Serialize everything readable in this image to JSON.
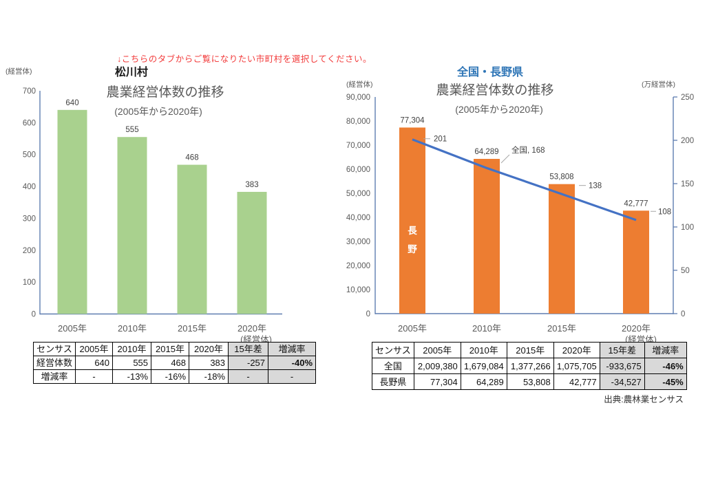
{
  "page": {
    "instruction": "↓こちらのタブからご覧になりたい市町村を選択してください。",
    "source_note": "出典:農林業センサス"
  },
  "colors": {
    "green_bar": "#A9D18E",
    "orange_bar": "#ED7D31",
    "line_blue": "#4472C4",
    "axis": "#5E7DB0",
    "text_gray": "#595959",
    "value_text": "#404040",
    "heading_blue": "#2E75B6",
    "leader_gray": "#A6A6A6",
    "table_shade": "#D9D9D9",
    "negative_red": "#FF3333"
  },
  "chart_data": [
    {
      "type": "bar",
      "heading": "松川村",
      "title": "農業経営体数の推移",
      "subtitle": "(2005年から2020年)",
      "y_axis_unit": "(経営体)",
      "x_axis_end_note": "(経営体)",
      "categories": [
        "2005年",
        "2010年",
        "2015年",
        "2020年"
      ],
      "values": [
        640,
        555,
        468,
        383
      ],
      "value_labels": [
        "640",
        "555",
        "468",
        "383"
      ],
      "ylim": [
        0,
        700
      ],
      "ytick_step": 100,
      "grid": false,
      "legend": "none"
    },
    {
      "type": "bar+line",
      "heading": "全国・長野県",
      "title": "農業経営体数の推移",
      "subtitle": "(2005年から2020年)",
      "x_axis_end_note": "(経営体)",
      "categories": [
        "2005年",
        "2010年",
        "2015年",
        "2020年"
      ],
      "left_axis": {
        "unit": "(経営体)",
        "lim": [
          0,
          90000
        ],
        "step": 10000
      },
      "right_axis": {
        "unit": "(万経営体)",
        "lim": [
          0,
          250
        ],
        "step": 50
      },
      "series": [
        {
          "name": "長野",
          "kind": "bar",
          "axis": "left",
          "values": [
            77304,
            64289,
            53808,
            42777
          ],
          "value_labels": [
            "77,304",
            "64,289",
            "53,808",
            "42,777"
          ],
          "inside_label": "長野"
        },
        {
          "name": "全国",
          "kind": "line",
          "axis": "right",
          "values": [
            201,
            168,
            138,
            108
          ],
          "point_labels": [
            "201",
            "全国, 168",
            "138",
            "108"
          ]
        }
      ],
      "grid": false,
      "legend": "none"
    }
  ],
  "tables": [
    {
      "header": [
        "センサス",
        "2005年",
        "2010年",
        "2015年",
        "2020年",
        "15年差",
        "増減率"
      ],
      "rows": [
        [
          "経営体数",
          "640",
          "555",
          "468",
          "383",
          "-257",
          "-40%"
        ],
        [
          "増減率",
          "-",
          "-13%",
          "-16%",
          "-18%",
          "-",
          "-"
        ]
      ]
    },
    {
      "header": [
        "センサス",
        "2005年",
        "2010年",
        "2015年",
        "2020年",
        "15年差",
        "増減率"
      ],
      "rows": [
        [
          "全国",
          "2,009,380",
          "1,679,084",
          "1,377,266",
          "1,075,705",
          "-933,675",
          "-46%"
        ],
        [
          "長野県",
          "77,304",
          "64,289",
          "53,808",
          "42,777",
          "-34,527",
          "-45%"
        ]
      ]
    }
  ]
}
